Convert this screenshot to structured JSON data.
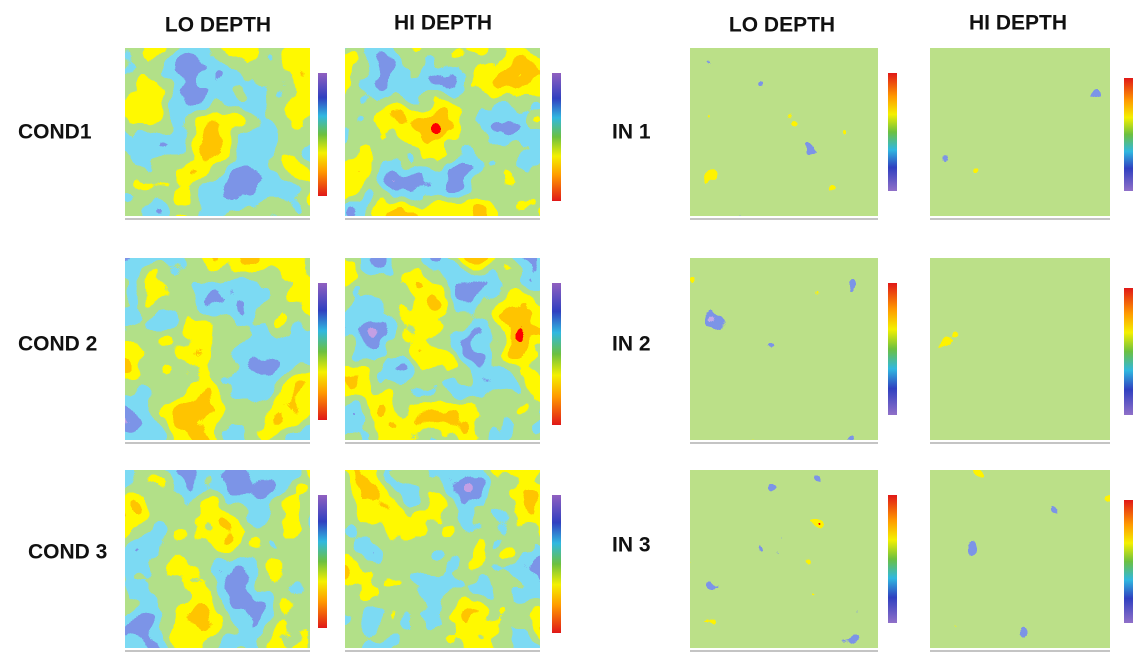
{
  "left": {
    "columns": [
      "LO DEPTH",
      "HI DEPTH"
    ],
    "rows": [
      "COND1",
      "COND 2",
      "COND 3"
    ]
  },
  "right": {
    "columns": [
      "LO DEPTH",
      "HI DEPTH"
    ],
    "rows": [
      "IN 1",
      "IN 2",
      "IN 3"
    ]
  }
}
